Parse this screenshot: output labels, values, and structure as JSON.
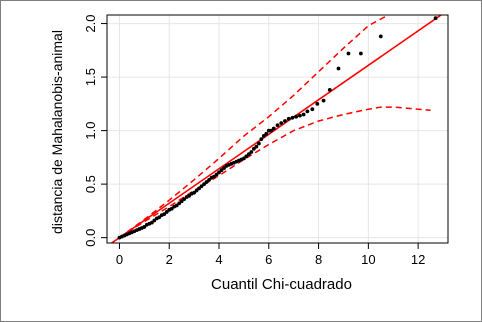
{
  "chart_data": {
    "type": "scatter",
    "title": "",
    "xlabel": "Cuantil Chi-cuadrado",
    "ylabel": "distancia de Mahalanobis-animal",
    "xlim": [
      -0.5,
      13.2
    ],
    "ylim": [
      -0.05,
      2.08
    ],
    "xticks": [
      0,
      2,
      4,
      6,
      8,
      10,
      12
    ],
    "yticks": [
      0.0,
      0.5,
      1.0,
      1.5,
      2.0
    ],
    "ytick_labels": [
      "0.0",
      "0.5",
      "1.0",
      "1.5",
      "2.0"
    ],
    "grid": true,
    "colors": {
      "points": "#000000",
      "reference_line": "#ff0000",
      "envelope": "#ff0000",
      "grid": "#e6e6e6"
    },
    "points": {
      "x": [
        0.0,
        0.1,
        0.2,
        0.3,
        0.4,
        0.5,
        0.6,
        0.7,
        0.8,
        0.9,
        1.0,
        1.1,
        1.2,
        1.3,
        1.4,
        1.5,
        1.6,
        1.7,
        1.8,
        1.9,
        2.0,
        2.1,
        2.2,
        2.3,
        2.4,
        2.5,
        2.6,
        2.7,
        2.8,
        2.9,
        3.0,
        3.1,
        3.2,
        3.3,
        3.4,
        3.5,
        3.6,
        3.7,
        3.8,
        3.9,
        4.0,
        4.1,
        4.2,
        4.3,
        4.4,
        4.5,
        4.6,
        4.7,
        4.8,
        4.9,
        5.0,
        5.1,
        5.2,
        5.3,
        5.4,
        5.5,
        5.6,
        5.7,
        5.8,
        5.9,
        6.0,
        6.1,
        6.2,
        6.35,
        6.5,
        6.65,
        6.8,
        6.95,
        7.1,
        7.25,
        7.4,
        7.55,
        7.75,
        7.95,
        8.2,
        8.45,
        8.8,
        9.2,
        9.7,
        10.5,
        12.7
      ],
      "y": [
        0.0,
        0.01,
        0.02,
        0.03,
        0.04,
        0.05,
        0.06,
        0.07,
        0.08,
        0.09,
        0.1,
        0.12,
        0.13,
        0.14,
        0.16,
        0.18,
        0.19,
        0.21,
        0.22,
        0.24,
        0.26,
        0.27,
        0.29,
        0.3,
        0.32,
        0.34,
        0.36,
        0.38,
        0.39,
        0.41,
        0.42,
        0.44,
        0.46,
        0.48,
        0.5,
        0.52,
        0.54,
        0.56,
        0.57,
        0.59,
        0.61,
        0.63,
        0.65,
        0.67,
        0.68,
        0.69,
        0.7,
        0.71,
        0.72,
        0.73,
        0.74,
        0.76,
        0.78,
        0.8,
        0.83,
        0.85,
        0.88,
        0.92,
        0.95,
        0.97,
        1.0,
        1.0,
        1.02,
        1.05,
        1.07,
        1.09,
        1.11,
        1.12,
        1.13,
        1.14,
        1.15,
        1.18,
        1.2,
        1.25,
        1.28,
        1.38,
        1.58,
        1.72,
        1.72,
        1.88,
        2.05
      ]
    },
    "reference_line": {
      "slope": 0.161,
      "intercept": 0.0
    },
    "envelope_upper": {
      "x": [
        0,
        1,
        2,
        3,
        4,
        5,
        6,
        7,
        8,
        9,
        10,
        10.8
      ],
      "y": [
        0.0,
        0.17,
        0.35,
        0.54,
        0.74,
        0.95,
        1.13,
        1.33,
        1.55,
        1.77,
        1.98,
        2.08
      ]
    },
    "envelope_lower": {
      "x": [
        0,
        1,
        2,
        3,
        4,
        5,
        6,
        7,
        8,
        9,
        10,
        10.5,
        11,
        11.5,
        12,
        12.5
      ],
      "y": [
        0.0,
        0.15,
        0.29,
        0.44,
        0.58,
        0.73,
        0.87,
        1.0,
        1.09,
        1.15,
        1.2,
        1.22,
        1.22,
        1.21,
        1.2,
        1.19
      ]
    }
  }
}
